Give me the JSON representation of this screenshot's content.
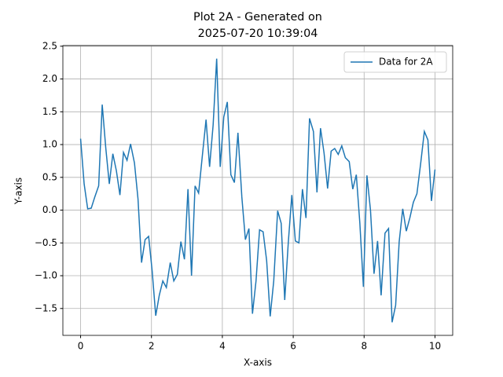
{
  "chart_data": {
    "type": "line",
    "title": [
      "Plot 2A - Generated on",
      "2025-07-20 10:39:04"
    ],
    "xlabel": "X-axis",
    "ylabel": "Y-axis",
    "x": [
      0,
      0.1,
      0.2,
      0.3,
      0.4,
      0.51,
      0.61,
      0.71,
      0.81,
      0.91,
      1.01,
      1.11,
      1.21,
      1.31,
      1.41,
      1.52,
      1.62,
      1.72,
      1.82,
      1.92,
      2.02,
      2.12,
      2.22,
      2.32,
      2.42,
      2.53,
      2.63,
      2.73,
      2.83,
      2.93,
      3.03,
      3.13,
      3.23,
      3.33,
      3.43,
      3.54,
      3.64,
      3.74,
      3.84,
      3.94,
      4.04,
      4.14,
      4.24,
      4.34,
      4.44,
      4.55,
      4.65,
      4.75,
      4.85,
      4.95,
      5.05,
      5.15,
      5.25,
      5.35,
      5.45,
      5.56,
      5.66,
      5.76,
      5.86,
      5.96,
      6.06,
      6.16,
      6.26,
      6.36,
      6.46,
      6.57,
      6.67,
      6.77,
      6.87,
      6.97,
      7.07,
      7.17,
      7.27,
      7.37,
      7.47,
      7.58,
      7.68,
      7.78,
      7.88,
      7.98,
      8.08,
      8.18,
      8.28,
      8.38,
      8.48,
      8.59,
      8.69,
      8.79,
      8.89,
      8.99,
      9.09,
      9.19,
      9.29,
      9.39,
      9.49,
      9.6,
      9.7,
      9.8,
      9.9,
      10
    ],
    "series": [
      {
        "name": "Data for 2A",
        "color": "#1f77b4",
        "values": [
          1.09,
          0.4,
          0.02,
          0.03,
          0.2,
          0.37,
          1.61,
          0.95,
          0.4,
          0.86,
          0.6,
          0.23,
          0.88,
          0.76,
          1.01,
          0.72,
          0.17,
          -0.8,
          -0.45,
          -0.4,
          -0.93,
          -1.61,
          -1.3,
          -1.08,
          -1.18,
          -0.8,
          -1.08,
          -0.98,
          -0.48,
          -0.75,
          0.32,
          -1.0,
          0.37,
          0.26,
          0.8,
          1.38,
          0.66,
          1.3,
          2.31,
          0.66,
          1.42,
          1.65,
          0.54,
          0.42,
          1.18,
          0.2,
          -0.45,
          -0.28,
          -1.58,
          -1.08,
          -0.3,
          -0.33,
          -0.77,
          -1.62,
          -1.08,
          -0.01,
          -0.2,
          -1.37,
          -0.5,
          0.23,
          -0.47,
          -0.5,
          0.32,
          -0.12,
          1.4,
          1.2,
          0.27,
          1.25,
          0.87,
          0.33,
          0.9,
          0.94,
          0.85,
          0.98,
          0.8,
          0.74,
          0.32,
          0.54,
          -0.2,
          -1.17,
          0.53,
          0.0,
          -0.97,
          -0.47,
          -1.3,
          -0.35,
          -0.28,
          -1.71,
          -1.45,
          -0.48,
          0.02,
          -0.32,
          -0.12,
          0.12,
          0.25,
          0.73,
          1.2,
          1.07,
          0.14,
          0.62
        ]
      }
    ],
    "xlim": [
      -0.5,
      10.5
    ],
    "ylim": [
      -1.91,
      2.51
    ],
    "xticks": [
      0,
      2,
      4,
      6,
      8,
      10
    ],
    "yticks": [
      {
        "value": -1.5,
        "label": "−1.5"
      },
      {
        "value": -1,
        "label": "−1.0"
      },
      {
        "value": -0.5,
        "label": "−0.5"
      },
      {
        "value": 0,
        "label": "0.0"
      },
      0.5,
      {
        "value": 1,
        "label": "1.0"
      },
      1.5,
      {
        "value": 2,
        "label": "2.0"
      },
      2.5
    ],
    "grid": true,
    "legend": "upper right"
  }
}
